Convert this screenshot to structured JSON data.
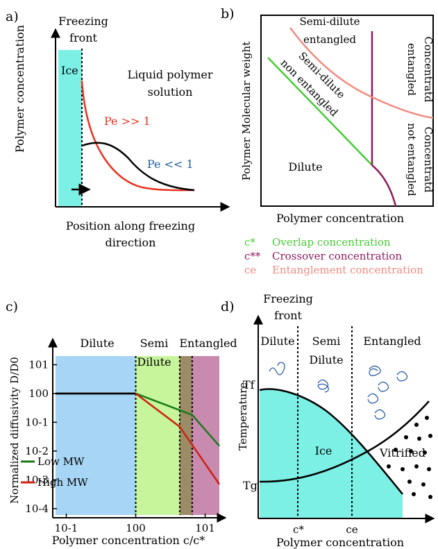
{
  "panels": {
    "a": {
      "label": "a)",
      "ylabel": "Polymer concentration",
      "xlabel_line1": "Position along freezing",
      "xlabel_line2": "direction",
      "front_line1": "Freezing",
      "front_line2": "front",
      "ice": "Ice",
      "liquid_line1": "Liquid polymer",
      "liquid_line2": "solution",
      "pe_high": "Pe >> 1",
      "pe_low": "Pe << 1"
    },
    "b": {
      "label": "b)",
      "ylabel": "Polymer Molecular weight",
      "xlabel": "Polymer concentration",
      "region_sd_ent_1": "Semi-dilute",
      "region_sd_ent_2": "entangled",
      "region_sd_non_1": "Semi-dilute",
      "region_sd_non_2": "non entangled",
      "region_dilute": "Dilute",
      "region_conc_ent_1": "Concentratd",
      "region_conc_ent_2": "entangled",
      "region_conc_not_1": "Concentratd",
      "region_conc_not_2": "not entangled",
      "legend": [
        {
          "symbol": "c*",
          "text": "Overlap concentration",
          "color": "#44cc33"
        },
        {
          "symbol": "c**",
          "text": "Crossover concentration",
          "color": "#8b1a5e"
        },
        {
          "symbol": "ce",
          "text": "Entanglement concentration",
          "color": "#f08a80"
        }
      ]
    },
    "c": {
      "label": "c)",
      "ylabel": "Normalized diffusivity D/D0",
      "xlabel": "Polymer concentration c/c*",
      "region_dilute": "Dilute",
      "region_semi_1": "Semi",
      "region_semi_2": "Dilute",
      "region_entangled": "Entangled",
      "xticks": [
        "10-1",
        "100",
        "101"
      ],
      "yticks": [
        "101",
        "100",
        "10-1",
        "10-2",
        "10-3",
        "10-4"
      ]
    },
    "d": {
      "label": "d)",
      "ylabel": "Temperature",
      "xlabel": "Polymer concentration",
      "front_line1": "Freezing",
      "front_line2": "front",
      "region_dilute": "Dilute",
      "region_semi_1": "Semi",
      "region_semi_2": "Dilute",
      "region_entangled": "Entangled",
      "ice": "Ice",
      "vitrified": "Vitrified",
      "tf": "Tf",
      "tg": "Tg",
      "tick_cstar": "c*",
      "tick_ce": "ce"
    }
  },
  "colors": {
    "ice": "#7df0e6",
    "pe_high": "#e8321e",
    "pe_low": "#1f5a9a",
    "dilute_bg": "#a7d5f5",
    "semi_bg": "#c6f59c",
    "overlap_bg": "#9c8c66",
    "entangled_bg": "#c98ab0",
    "low_mw": "#1a7a1a",
    "high_mw": "#cc2211",
    "c_star": "#44cc33",
    "c_starstar": "#8b1a5e",
    "c_e": "#f08a80"
  },
  "chart_data": {
    "type": "line",
    "title": "",
    "xlabel": "Polymer concentration c/c*",
    "ylabel": "Normalized diffusivity D/D0",
    "xscale": "log",
    "yscale": "log",
    "xlim": [
      0.07,
      16
    ],
    "ylim": [
      6e-05,
      20
    ],
    "grid": false,
    "legend": "bottom-left",
    "regions": [
      {
        "name": "Dilute",
        "x": [
          0.07,
          1.0
        ]
      },
      {
        "name": "Semi Dilute",
        "x": [
          1.0,
          4.3
        ]
      },
      {
        "name": "Entangled",
        "x": [
          4.3,
          16
        ]
      }
    ],
    "series": [
      {
        "name": "Low MW",
        "color": "#1a7a1a",
        "x": [
          0.07,
          1.0,
          6.5,
          16
        ],
        "y": [
          1,
          1,
          0.18,
          0.015
        ]
      },
      {
        "name": "High MW",
        "color": "#cc2211",
        "x": [
          0.07,
          1.0,
          4.3,
          16
        ],
        "y": [
          1,
          1,
          0.07,
          0.0007
        ]
      }
    ]
  }
}
